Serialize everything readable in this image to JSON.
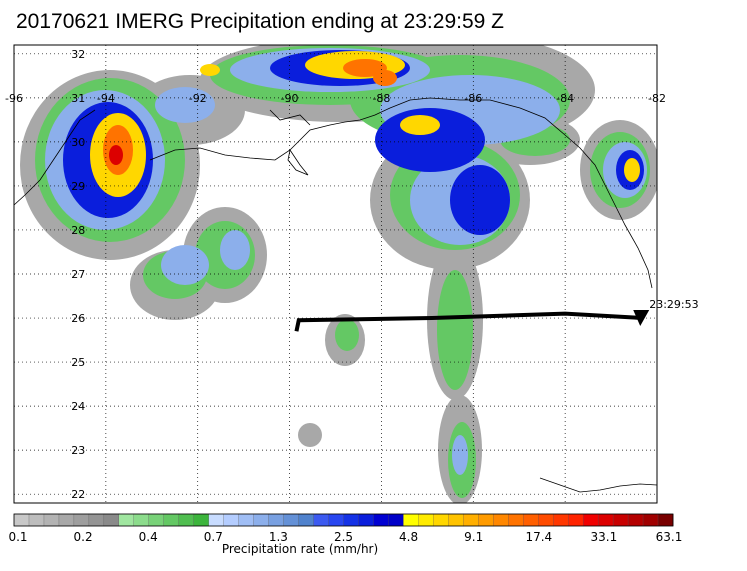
{
  "title": "20170621 IMERG Precipitation ending at 23:29:59 Z",
  "map": {
    "lon_range": [
      -96,
      -82
    ],
    "lat_range": [
      21.8,
      32.2
    ],
    "lon_labels": [
      "-96",
      "-94",
      "-92",
      "-90",
      "-88",
      "-86",
      "-84",
      "-82"
    ],
    "lat_labels": [
      "32",
      "31",
      "30",
      "29",
      "28",
      "27",
      "26",
      "25",
      "24",
      "23",
      "22"
    ],
    "gridlines": true,
    "coastline_color": "#000000"
  },
  "track": {
    "end_time_label": "23:29:53",
    "points": [
      [
        -89.85,
        25.7
      ],
      [
        -89.8,
        25.95
      ],
      [
        -86.9,
        26.0
      ],
      [
        -84.0,
        26.1
      ],
      [
        -82.3,
        26.0
      ]
    ],
    "color": "#000000"
  },
  "colorbar": {
    "xlabel": "Precipitation rate (mm/hr)",
    "tick_labels": [
      "0.1",
      "0.2",
      "0.4",
      "0.7",
      "1.3",
      "2.5",
      "4.8",
      "9.1",
      "17.4",
      "33.1",
      "63.1"
    ],
    "colors": [
      "#c8c8c8",
      "#bdbdbd",
      "#b3b3b3",
      "#a8a8a8",
      "#9e9e9e",
      "#949494",
      "#8a8a8a",
      "#a0e6a0",
      "#8cdc8c",
      "#78d278",
      "#64c864",
      "#50be50",
      "#3cb43c",
      "#c8dcff",
      "#b4cdff",
      "#a0bef5",
      "#8cafeb",
      "#78a0e1",
      "#6491d7",
      "#5082cd",
      "#3c5af0",
      "#2846f0",
      "#1432e6",
      "#0a1edc",
      "#0000d2",
      "#0000c8",
      "#ffff00",
      "#ffeb00",
      "#ffd700",
      "#ffc300",
      "#ffaf00",
      "#ff9b00",
      "#ff8700",
      "#ff7300",
      "#ff5f00",
      "#ff4b00",
      "#ff3700",
      "#ff2300",
      "#f00000",
      "#dc0000",
      "#c80000",
      "#b40000",
      "#a00000",
      "#780000"
    ]
  }
}
